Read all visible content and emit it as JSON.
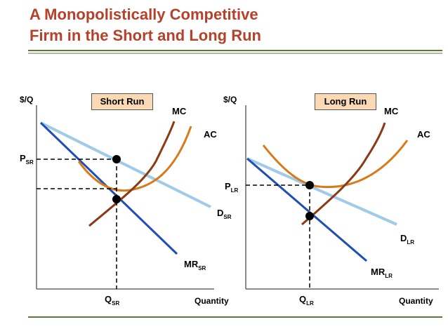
{
  "title": {
    "line1": "A Monopolistically Competitive",
    "line2": "Firm in the Short and Long Run"
  },
  "colors": {
    "title": "#b5412b",
    "rule": "#5a7a3a",
    "mc": "#8b3a14",
    "ac": "#d97a1a",
    "demand": "#9fcbe8",
    "mr": "#1f4fb5",
    "box_fill": "#fbd9b5"
  },
  "short_run": {
    "box_label": "Short Run",
    "y_axis": "$/Q",
    "x_axis": "Quantity",
    "mc": "MC",
    "ac": "AC",
    "d_main": "D",
    "d_sub": "SR",
    "mr_main": "MR",
    "mr_sub": "SR",
    "p_main": "P",
    "p_sub": "SR",
    "q_main": "Q",
    "q_sub": "SR"
  },
  "long_run": {
    "box_label": "Long Run",
    "y_axis": "$/Q",
    "x_axis": "Quantity",
    "mc": "MC",
    "ac": "AC",
    "d_main": "D",
    "d_sub": "LR",
    "mr_main": "MR",
    "mr_sub": "LR",
    "p_main": "P",
    "p_sub": "LR",
    "q_main": "Q",
    "q_sub": "LR"
  }
}
